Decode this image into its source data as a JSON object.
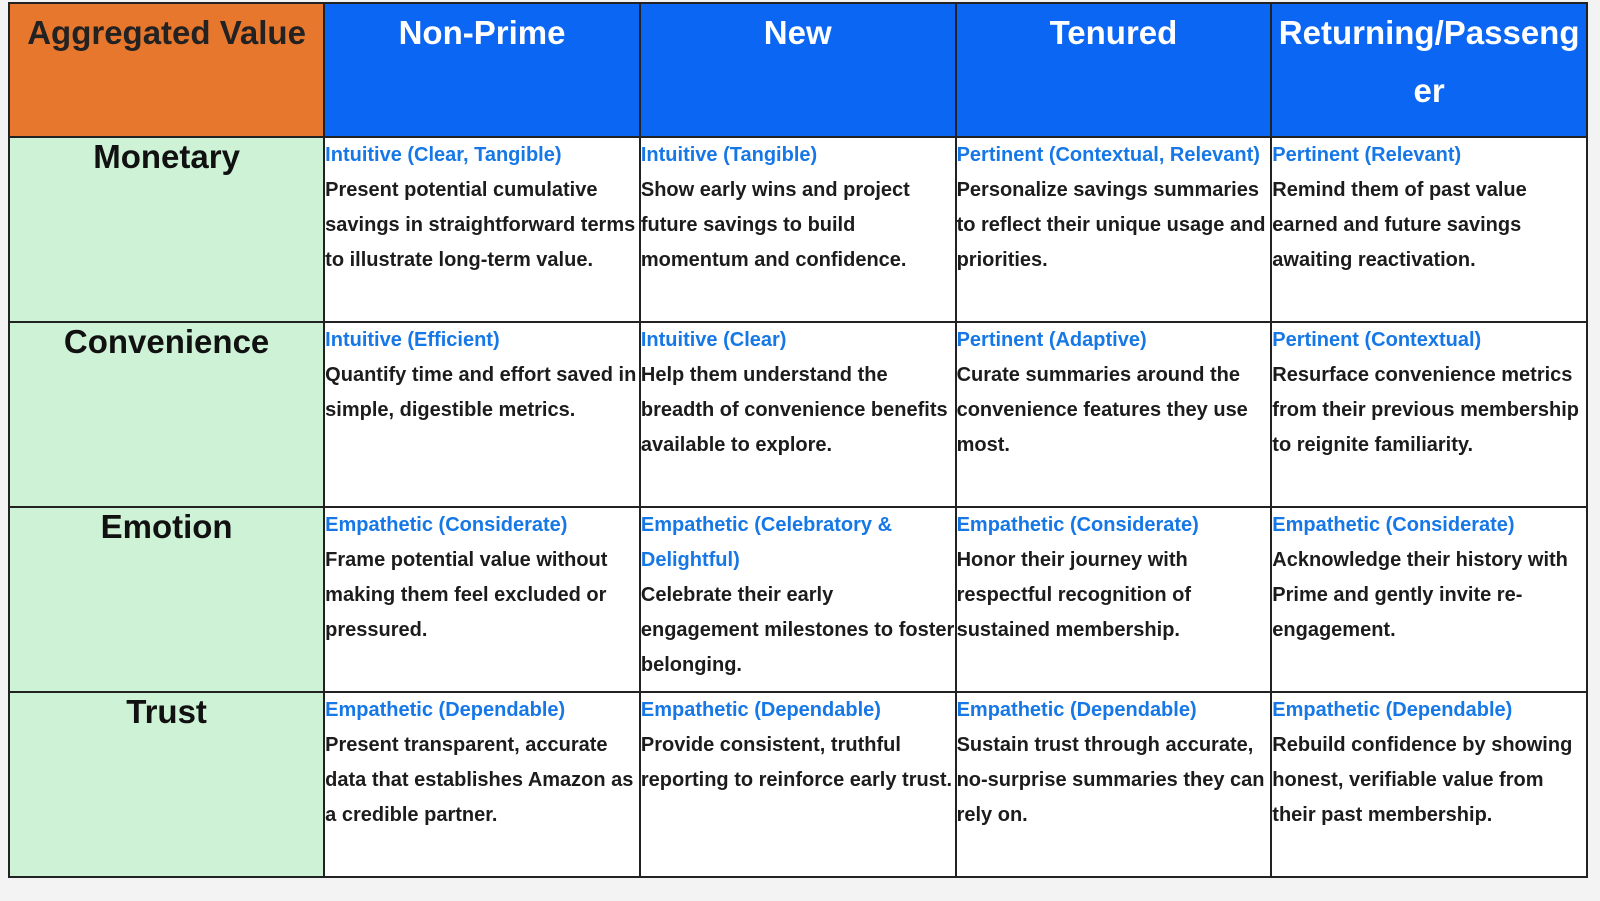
{
  "header": {
    "corner": "Aggregated Value",
    "segments": [
      "Non-Prime",
      "New",
      "Tenured",
      "Returning/Passenger"
    ]
  },
  "rows": [
    {
      "label": "Monetary",
      "cells": [
        {
          "tag": "Intuitive (Clear, Tangible)",
          "text": "Present potential cumulative savings in straightforward terms to illustrate long-term value."
        },
        {
          "tag": "Intuitive (Tangible)",
          "text": "Show early wins and project future savings to build momentum and confidence."
        },
        {
          "tag": "Pertinent (Contextual, Relevant)",
          "text": "Personalize savings summaries to reflect their unique usage and priorities."
        },
        {
          "tag": "Pertinent (Relevant)",
          "text": "Remind them of past value earned and future savings awaiting reactivation."
        }
      ]
    },
    {
      "label": "Convenience",
      "cells": [
        {
          "tag": "Intuitive (Efficient)",
          "text": "Quantify time and effort saved in simple, digestible metrics."
        },
        {
          "tag": "Intuitive (Clear)",
          "text": "Help them understand the breadth of convenience benefits available to explore."
        },
        {
          "tag": "Pertinent (Adaptive)",
          "text": "Curate summaries around the convenience features they use most."
        },
        {
          "tag": "Pertinent (Contextual)",
          "text": "Resurface convenience metrics from their previous membership to reignite familiarity."
        }
      ]
    },
    {
      "label": "Emotion",
      "cells": [
        {
          "tag": "Empathetic (Considerate)",
          "text": "Frame potential value without making them feel excluded or pressured."
        },
        {
          "tag": "Empathetic (Celebratory & Delightful)",
          "text": "Celebrate their early engagement milestones to foster belonging."
        },
        {
          "tag": "Empathetic (Considerate)",
          "text": "Honor their journey with respectful recognition of sustained membership."
        },
        {
          "tag": "Empathetic (Considerate)",
          "text": "Acknowledge their history with Prime and gently invite re-engagement."
        }
      ]
    },
    {
      "label": "Trust",
      "cells": [
        {
          "tag": "Empathetic (Dependable)",
          "text": "Present transparent, accurate data that establishes Amazon as a credible partner."
        },
        {
          "tag": "Empathetic (Dependable)",
          "text": "Provide consistent, truthful reporting to reinforce early trust."
        },
        {
          "tag": "Empathetic (Dependable)",
          "text": "Sustain trust through accurate, no-surprise summaries they can rely on."
        },
        {
          "tag": "Empathetic (Dependable)",
          "text": "Rebuild confidence by showing honest, verifiable value from their past membership."
        }
      ]
    }
  ],
  "colors": {
    "corner_bg": "#e8772e",
    "header_bg": "#0b66f3",
    "rowlabel_bg": "#cdf2d6",
    "tag_text": "#1677e6"
  }
}
